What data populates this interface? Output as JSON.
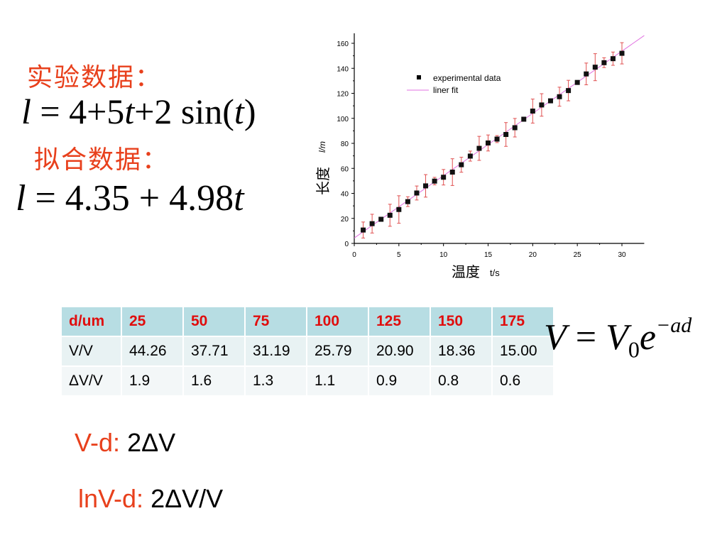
{
  "experimental_label": "实验数据：",
  "formula_exp": {
    "lhs": "l",
    "eq": "=",
    "rhs_a": "4+5",
    "t1": "t",
    "rhs_b": "+2",
    "sin": "sin(",
    "t2": "t",
    "close": ")"
  },
  "fit_label": "拟合数据：",
  "formula_fit": {
    "lhs": "l",
    "eq": "=",
    "rhs": "4.35 + 4.98",
    "t": "t"
  },
  "formula_v": {
    "V": "V",
    "eq": "=",
    "V0": "V",
    "sub": "0",
    "e": "e",
    "exp": "−ad"
  },
  "table": {
    "header": [
      "d/um",
      "25",
      "50",
      "75",
      "100",
      "125",
      "150",
      "175"
    ],
    "rows": [
      [
        "V/V",
        "44.26",
        "37.71",
        "31.19",
        "25.79",
        "20.90",
        "18.36",
        "15.00"
      ],
      [
        "ΔV/V",
        "1.9",
        "1.6",
        "1.3",
        "1.1",
        "0.9",
        "0.8",
        "0.6"
      ]
    ]
  },
  "notes": [
    {
      "label": "V-d:",
      "value": "2ΔV"
    },
    {
      "label": "lnV-d:",
      "value": "2ΔV/V"
    }
  ],
  "colors": {
    "accent_red": "#e8401c",
    "table_header": "#b7dde3",
    "error_bar": "#e05050",
    "fit_line": "#e070e0"
  },
  "chart_data": {
    "type": "scatter",
    "xlabel_cn": "温度",
    "xlabel": "t/s",
    "ylabel_cn": "长度",
    "ylabel": "l/m",
    "xlim": [
      0,
      32.5
    ],
    "ylim": [
      0,
      168
    ],
    "xticks": [
      0,
      5,
      10,
      15,
      20,
      25,
      30
    ],
    "yticks": [
      0,
      20,
      40,
      60,
      80,
      100,
      120,
      140,
      160
    ],
    "legend": {
      "position": "top-left",
      "entries": [
        "experimental data",
        "liner fit"
      ]
    },
    "series": [
      {
        "name": "experimental data",
        "x": [
          1,
          2,
          3,
          4,
          5,
          6,
          7,
          8,
          9,
          10,
          11,
          12,
          13,
          14,
          15,
          16,
          17,
          18,
          19,
          20,
          21,
          22,
          23,
          24,
          25,
          26,
          27,
          28,
          29,
          30
        ],
        "y": [
          10.7,
          15.8,
          19.3,
          22.5,
          27.1,
          33.4,
          40.3,
          46.0,
          49.8,
          52.9,
          57.0,
          62.9,
          69.8,
          76.0,
          80.3,
          83.4,
          87.1,
          92.5,
          99.3,
          105.8,
          110.7,
          114.0,
          117.3,
          122.2,
          128.7,
          135.5,
          140.9,
          144.5,
          147.7,
          152.0
        ],
        "error": [
          6.4,
          7.5,
          0,
          8.8,
          11,
          3.9,
          5.6,
          9,
          3,
          6.2,
          10.7,
          6,
          4,
          9.6,
          6.4,
          2.8,
          9.5,
          7.4,
          0,
          9.6,
          9,
          0,
          7.6,
          8.2,
          0,
          8.7,
          10.8,
          3.9,
          5.3,
          8.5
        ]
      },
      {
        "name": "liner fit",
        "intercept": 4.35,
        "slope": 4.98,
        "x_range": [
          0,
          32.5
        ]
      }
    ]
  }
}
